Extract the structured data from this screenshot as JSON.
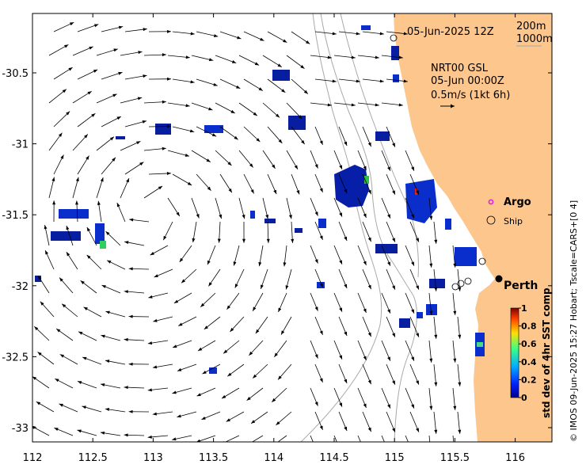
{
  "map": {
    "header_date": "05-Jun-2025 12Z",
    "legend_depth_1": "200m",
    "legend_depth_2": "1000m",
    "product": "NRT00 GSL",
    "product_time": "05-Jun 00:00Z",
    "arrow_scale": "0.5m/s (1kt 6h)",
    "label_argo": "Argo",
    "label_ship": "Ship",
    "label_city": "Perth",
    "colorbar_title": "std dev of 4hr SST comp",
    "colorbar_ticks": [
      "0",
      "0.2",
      "0.4",
      "0.6",
      "0.8",
      "1"
    ],
    "credit": "© IMOS 09-Jun-2025 15:27 Hobart; Tscale=CARS+[0 4]",
    "x_ticks": [
      "112",
      "112.5",
      "113",
      "113.5",
      "114",
      "114.5",
      "115",
      "115.5",
      "116"
    ],
    "y_ticks": [
      "-30.5",
      "-31",
      "-31.5",
      "-32",
      "-32.5",
      "-33"
    ],
    "colors": {
      "land": "#fcc68d",
      "arrow": "#000000",
      "contour": "#a8a8a8",
      "argo": "#e020e0"
    }
  }
}
